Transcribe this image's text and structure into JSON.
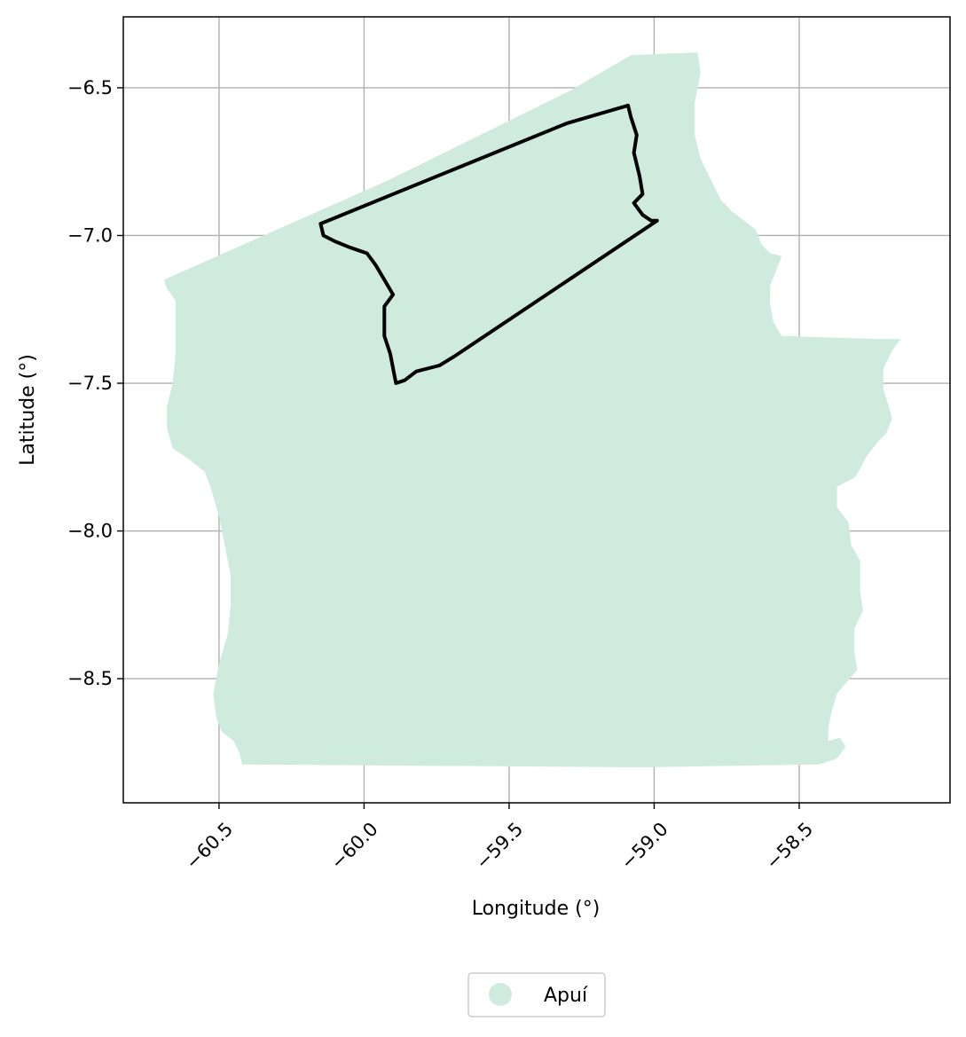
{
  "chart_data": {
    "type": "map",
    "xlabel": "Longitude (°)",
    "ylabel": "Latitude (°)",
    "xlim": [
      -60.83,
      -57.98
    ],
    "ylim": [
      -8.92,
      -6.26
    ],
    "grid": true,
    "x_ticks": [
      -60.5,
      -60.0,
      -59.5,
      -59.0,
      -58.5
    ],
    "x_tick_labels": [
      "−60.5",
      "−60.0",
      "−59.5",
      "−59.0",
      "−58.5"
    ],
    "y_ticks": [
      -6.5,
      -7.0,
      -7.5,
      -8.0,
      -8.5
    ],
    "y_tick_labels": [
      "−6.5",
      "−7.0",
      "−7.5",
      "−8.0",
      "−8.5"
    ],
    "legend": {
      "placement": "bottom-center-outside",
      "entries": [
        {
          "label": "Apuí",
          "color": "#cfebdd"
        }
      ]
    },
    "layers": [
      {
        "kind": "fill",
        "name": "Apuí",
        "color": "#cfebdd",
        "coords": [
          [
            -60.69,
            -7.15
          ],
          [
            -59.91,
            -6.81
          ],
          [
            -59.29,
            -6.51
          ],
          [
            -59.08,
            -6.39
          ],
          [
            -58.85,
            -6.38
          ],
          [
            -58.84,
            -6.45
          ],
          [
            -58.86,
            -6.55
          ],
          [
            -58.86,
            -6.66
          ],
          [
            -58.84,
            -6.74
          ],
          [
            -58.8,
            -6.82
          ],
          [
            -58.77,
            -6.88
          ],
          [
            -58.73,
            -6.92
          ],
          [
            -58.69,
            -6.95
          ],
          [
            -58.65,
            -6.98
          ],
          [
            -58.63,
            -7.03
          ],
          [
            -58.6,
            -7.06
          ],
          [
            -58.56,
            -7.07
          ],
          [
            -58.58,
            -7.12
          ],
          [
            -58.6,
            -7.17
          ],
          [
            -58.6,
            -7.23
          ],
          [
            -58.59,
            -7.29
          ],
          [
            -58.56,
            -7.34
          ],
          [
            -58.24,
            -7.35
          ],
          [
            -58.15,
            -7.35
          ],
          [
            -58.18,
            -7.39
          ],
          [
            -58.21,
            -7.45
          ],
          [
            -58.21,
            -7.52
          ],
          [
            -58.19,
            -7.58
          ],
          [
            -58.18,
            -7.62
          ],
          [
            -58.2,
            -7.67
          ],
          [
            -58.23,
            -7.7
          ],
          [
            -58.27,
            -7.75
          ],
          [
            -58.29,
            -7.79
          ],
          [
            -58.31,
            -7.82
          ],
          [
            -58.37,
            -7.85
          ],
          [
            -58.37,
            -7.92
          ],
          [
            -58.33,
            -7.97
          ],
          [
            -58.32,
            -8.05
          ],
          [
            -58.29,
            -8.1
          ],
          [
            -58.29,
            -8.2
          ],
          [
            -58.28,
            -8.27
          ],
          [
            -58.31,
            -8.33
          ],
          [
            -58.31,
            -8.41
          ],
          [
            -58.3,
            -8.47
          ],
          [
            -58.37,
            -8.55
          ],
          [
            -58.39,
            -8.62
          ],
          [
            -58.4,
            -8.67
          ],
          [
            -58.4,
            -8.71
          ],
          [
            -58.36,
            -8.7
          ],
          [
            -58.34,
            -8.73
          ],
          [
            -58.37,
            -8.77
          ],
          [
            -58.43,
            -8.79
          ],
          [
            -59.05,
            -8.8
          ],
          [
            -60.42,
            -8.79
          ],
          [
            -60.43,
            -8.75
          ],
          [
            -60.45,
            -8.71
          ],
          [
            -60.49,
            -8.68
          ],
          [
            -60.51,
            -8.63
          ],
          [
            -60.52,
            -8.55
          ],
          [
            -60.5,
            -8.45
          ],
          [
            -60.47,
            -8.35
          ],
          [
            -60.46,
            -8.25
          ],
          [
            -60.46,
            -8.15
          ],
          [
            -60.48,
            -8.05
          ],
          [
            -60.5,
            -7.95
          ],
          [
            -60.53,
            -7.85
          ],
          [
            -60.55,
            -7.8
          ],
          [
            -60.6,
            -7.76
          ],
          [
            -60.66,
            -7.72
          ],
          [
            -60.68,
            -7.65
          ],
          [
            -60.68,
            -7.58
          ],
          [
            -60.66,
            -7.5
          ],
          [
            -60.65,
            -7.4
          ],
          [
            -60.65,
            -7.3
          ],
          [
            -60.65,
            -7.22
          ],
          [
            -60.68,
            -7.18
          ]
        ]
      },
      {
        "kind": "outline",
        "name": "",
        "color": "#000000",
        "coords": [
          [
            -60.15,
            -6.96
          ],
          [
            -59.3,
            -6.62
          ],
          [
            -59.09,
            -6.56
          ],
          [
            -59.08,
            -6.6
          ],
          [
            -59.06,
            -6.66
          ],
          [
            -59.07,
            -6.72
          ],
          [
            -59.05,
            -6.8
          ],
          [
            -59.04,
            -6.86
          ],
          [
            -59.07,
            -6.89
          ],
          [
            -59.04,
            -6.93
          ],
          [
            -59.01,
            -6.95
          ],
          [
            -58.99,
            -6.95
          ],
          [
            -59.69,
            -7.41
          ],
          [
            -59.74,
            -7.44
          ],
          [
            -59.82,
            -7.46
          ],
          [
            -59.86,
            -7.49
          ],
          [
            -59.89,
            -7.5
          ],
          [
            -59.91,
            -7.4
          ],
          [
            -59.93,
            -7.34
          ],
          [
            -59.93,
            -7.24
          ],
          [
            -59.9,
            -7.2
          ],
          [
            -59.93,
            -7.15
          ],
          [
            -59.96,
            -7.1
          ],
          [
            -59.99,
            -7.06
          ],
          [
            -60.05,
            -7.04
          ],
          [
            -60.1,
            -7.02
          ],
          [
            -60.14,
            -7.0
          ]
        ]
      }
    ]
  }
}
